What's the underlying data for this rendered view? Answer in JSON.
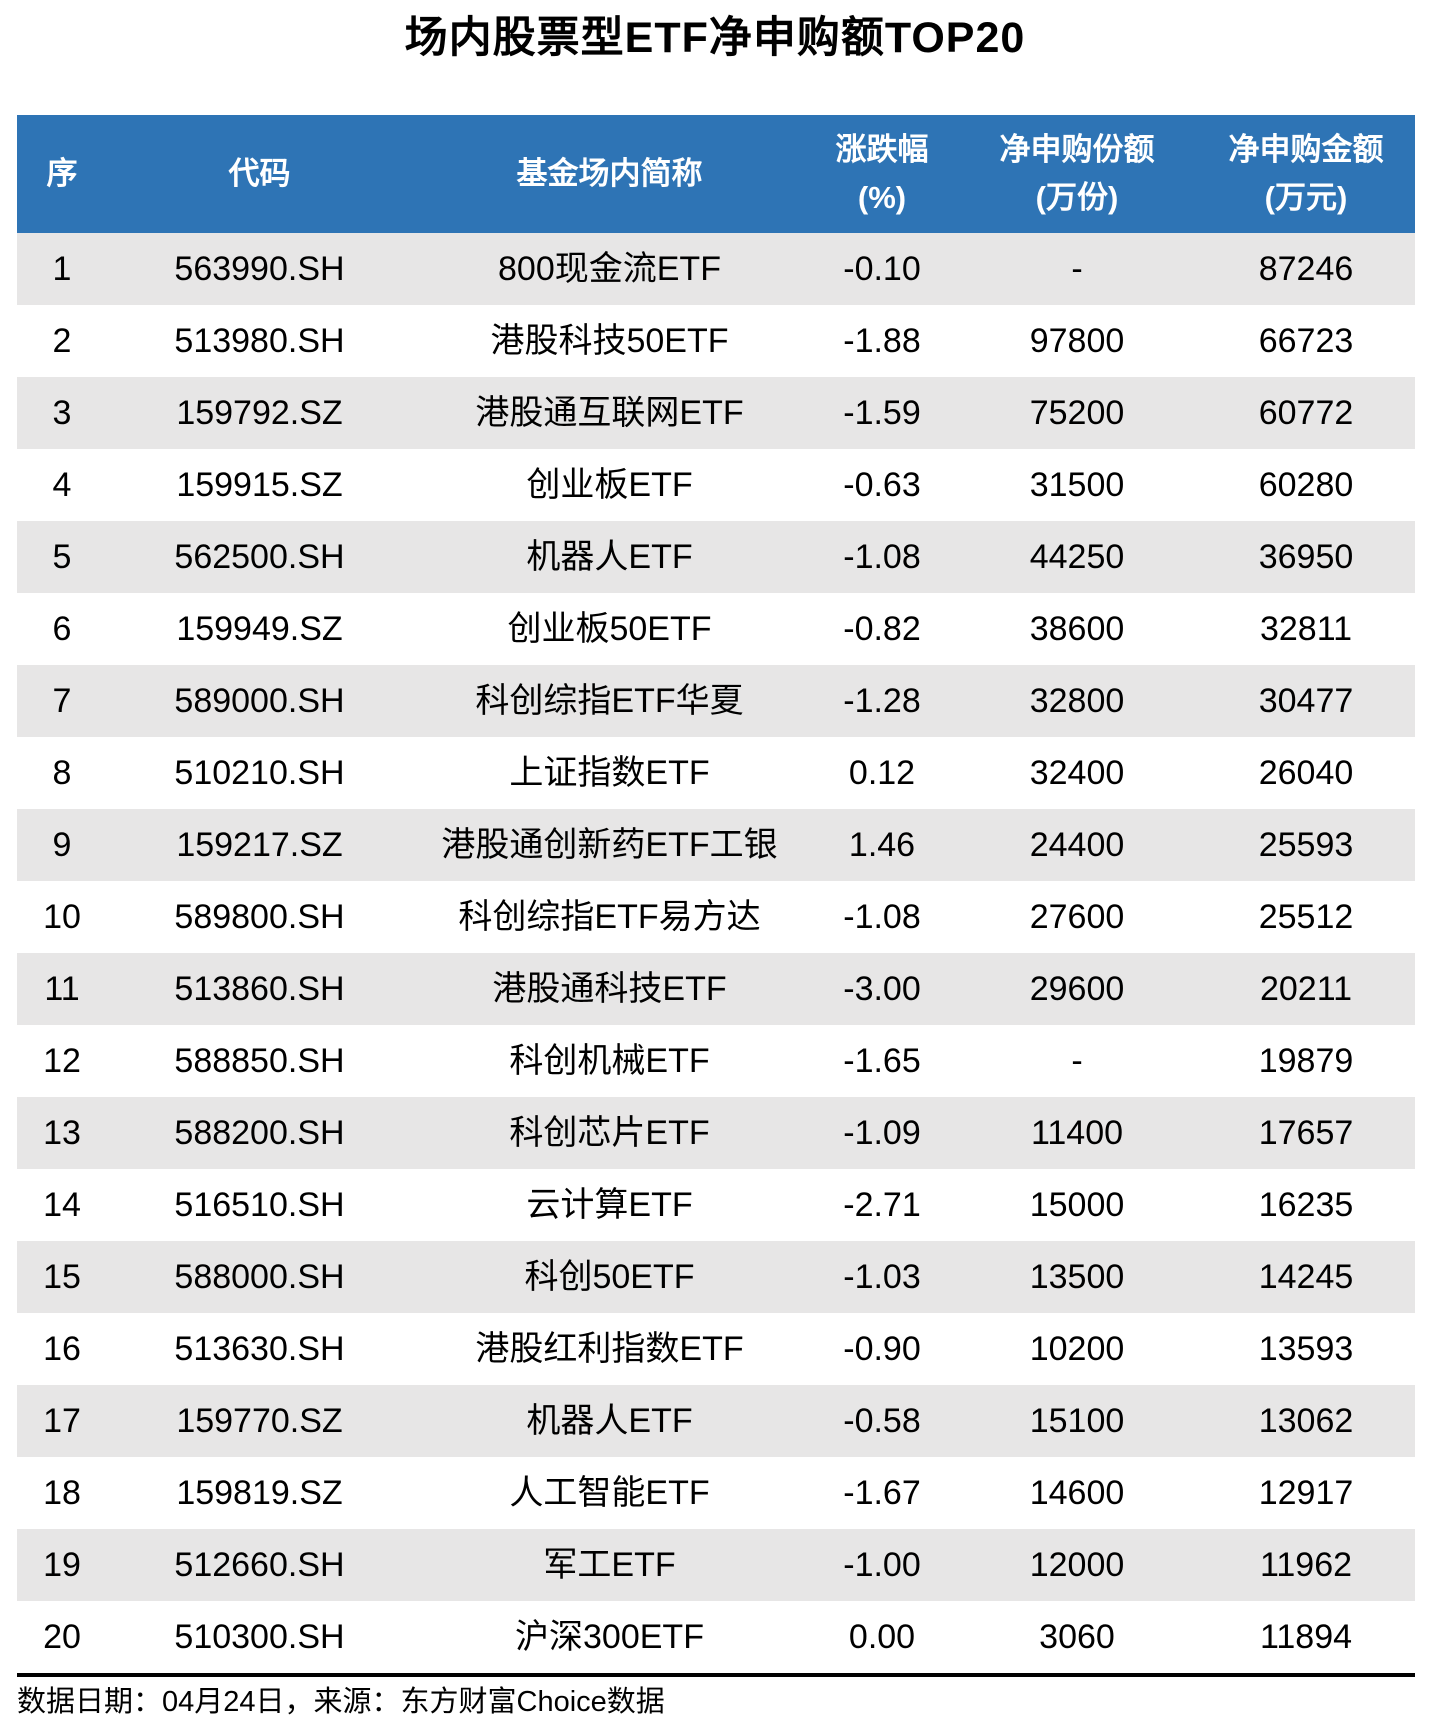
{
  "chart_data": {
    "type": "table",
    "title": "场内股票型ETF净申购额TOP20",
    "columns": [
      {
        "key": "rank",
        "label": "序"
      },
      {
        "key": "code",
        "label": "代码"
      },
      {
        "key": "name",
        "label": "基金场内简称"
      },
      {
        "key": "change",
        "label": "涨跌幅(%)",
        "line1": "涨跌幅",
        "line2": "(%)"
      },
      {
        "key": "shares",
        "label": "净申购份额(万份)",
        "line1": "净申购份额",
        "line2": "(万份)"
      },
      {
        "key": "amount",
        "label": "净申购金额(万元)",
        "line1": "净申购金额",
        "line2": "(万元)"
      }
    ],
    "rows": [
      [
        "1",
        "563990.SH",
        "800现金流ETF",
        "-0.10",
        "-",
        "87246"
      ],
      [
        "2",
        "513980.SH",
        "港股科技50ETF",
        "-1.88",
        "97800",
        "66723"
      ],
      [
        "3",
        "159792.SZ",
        "港股通互联网ETF",
        "-1.59",
        "75200",
        "60772"
      ],
      [
        "4",
        "159915.SZ",
        "创业板ETF",
        "-0.63",
        "31500",
        "60280"
      ],
      [
        "5",
        "562500.SH",
        "机器人ETF",
        "-1.08",
        "44250",
        "36950"
      ],
      [
        "6",
        "159949.SZ",
        "创业板50ETF",
        "-0.82",
        "38600",
        "32811"
      ],
      [
        "7",
        "589000.SH",
        "科创综指ETF华夏",
        "-1.28",
        "32800",
        "30477"
      ],
      [
        "8",
        "510210.SH",
        "上证指数ETF",
        "0.12",
        "32400",
        "26040"
      ],
      [
        "9",
        "159217.SZ",
        "港股通创新药ETF工银",
        "1.46",
        "24400",
        "25593"
      ],
      [
        "10",
        "589800.SH",
        "科创综指ETF易方达",
        "-1.08",
        "27600",
        "25512"
      ],
      [
        "11",
        "513860.SH",
        "港股通科技ETF",
        "-3.00",
        "29600",
        "20211"
      ],
      [
        "12",
        "588850.SH",
        "科创机械ETF",
        "-1.65",
        "-",
        "19879"
      ],
      [
        "13",
        "588200.SH",
        "科创芯片ETF",
        "-1.09",
        "11400",
        "17657"
      ],
      [
        "14",
        "516510.SH",
        "云计算ETF",
        "-2.71",
        "15000",
        "16235"
      ],
      [
        "15",
        "588000.SH",
        "科创50ETF",
        "-1.03",
        "13500",
        "14245"
      ],
      [
        "16",
        "513630.SH",
        "港股红利指数ETF",
        "-0.90",
        "10200",
        "13593"
      ],
      [
        "17",
        "159770.SZ",
        "机器人ETF",
        "-0.58",
        "15100",
        "13062"
      ],
      [
        "18",
        "159819.SZ",
        "人工智能ETF",
        "-1.67",
        "14600",
        "12917"
      ],
      [
        "19",
        "512660.SH",
        "军工ETF",
        "-1.00",
        "12000",
        "11962"
      ],
      [
        "20",
        "510300.SH",
        "沪深300ETF",
        "0.00",
        "3060",
        "11894"
      ]
    ],
    "footnote": "数据日期：04月24日，来源：东方财富Choice数据",
    "layout": {
      "legend": "none",
      "grid": "off",
      "row_striping": "odd-gray"
    }
  },
  "colors": {
    "header_bg": "#2E74B5",
    "header_text": "#FFFFFF",
    "stripe_bg": "#E7E6E6",
    "divider": "#000000",
    "text": "#000000"
  }
}
